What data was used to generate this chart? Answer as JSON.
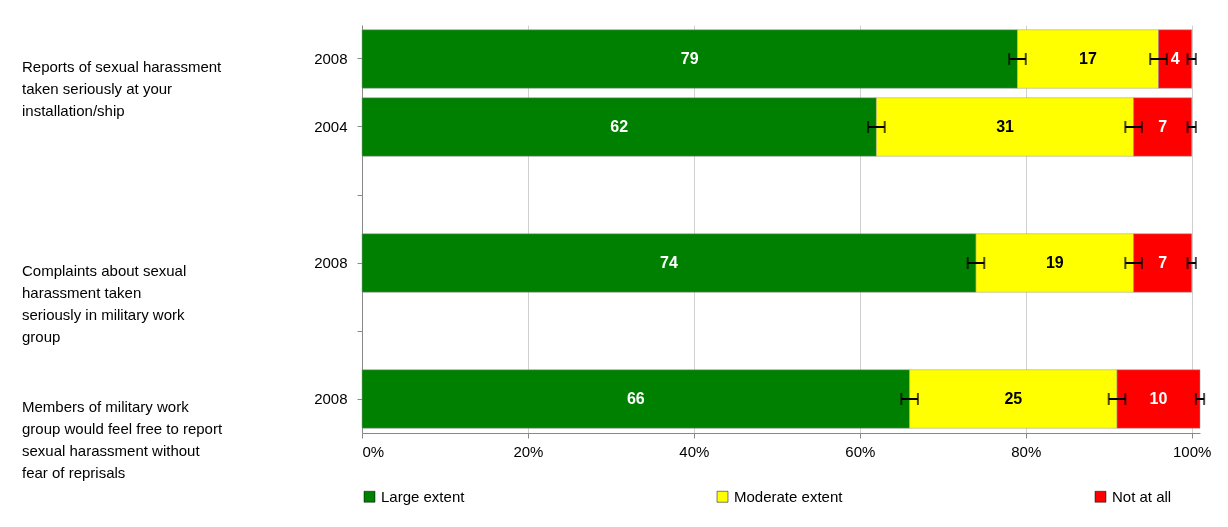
{
  "chart_data": {
    "type": "bar",
    "orientation": "horizontal",
    "stacked": true,
    "categories": [
      "2008",
      "2004",
      null,
      "2008",
      null,
      "2008"
    ],
    "series": [
      {
        "name": "Large extent",
        "color": "#008000",
        "values": [
          79,
          62,
          null,
          74,
          null,
          66
        ],
        "errors": [
          1,
          1,
          null,
          1,
          null,
          1
        ]
      },
      {
        "name": "Moderate extent",
        "color": "#ffff00",
        "values": [
          17,
          31,
          null,
          19,
          null,
          25
        ],
        "errors": [
          1,
          1,
          null,
          1,
          null,
          1
        ]
      },
      {
        "name": "Not at all",
        "color": "#ff0000",
        "values": [
          4,
          7,
          null,
          7,
          null,
          10
        ],
        "errors": [
          0.5,
          0.5,
          null,
          0.5,
          null,
          0.5
        ]
      }
    ],
    "xlim": [
      0,
      101
    ],
    "xticks": [
      {
        "value": 0,
        "label": "0%"
      },
      {
        "value": 20,
        "label": "20%"
      },
      {
        "value": 40,
        "label": "40%"
      },
      {
        "value": 60,
        "label": "60%"
      },
      {
        "value": 80,
        "label": "80%"
      },
      {
        "value": 100,
        "label": "100%"
      }
    ],
    "annotations": [
      "Reports of sexual harassment\ntaken seriously at your\ninstallation/ship",
      "Complaints about sexual\nharassment taken\nseriously in military work\ngroup",
      "Members of military work\ngroup would feel free to report\nsexual harassment without\nfear of reprisals"
    ],
    "data_labels": true,
    "grid": "x",
    "legend": "bottom"
  }
}
